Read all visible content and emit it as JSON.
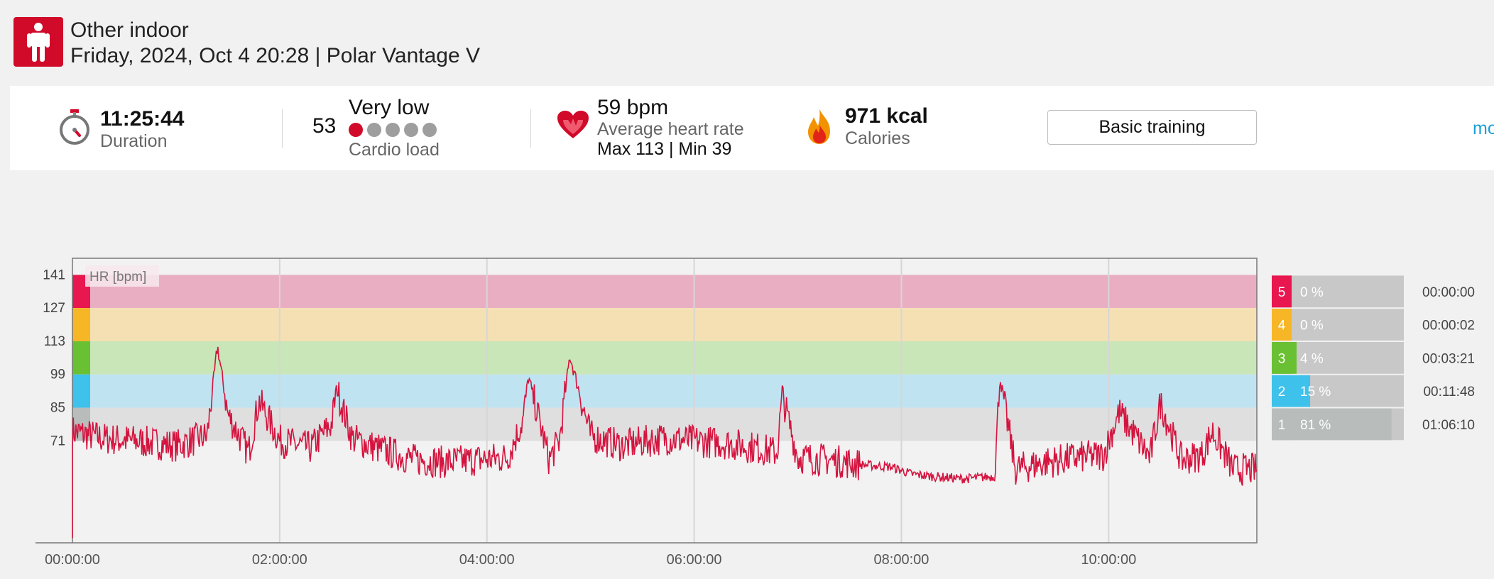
{
  "header": {
    "sport_icon": "person-standing-icon",
    "title": "Other indoor",
    "subtitle": "Friday, 2024, Oct 4 20:28 | Polar Vantage V"
  },
  "summary": {
    "duration": {
      "icon": "stopwatch-icon",
      "value": "11:25:44",
      "label": "Duration"
    },
    "cardio_load": {
      "value": "53",
      "level": "Very low",
      "label": "Cardio load",
      "dots_total": 5,
      "dots_filled": 1
    },
    "heart_rate": {
      "icon": "heart-icon",
      "value": "59 bpm",
      "label": "Average heart rate",
      "max_min": "Max 113  |  Min 39"
    },
    "calories": {
      "icon": "flame-icon",
      "value": "971 kcal",
      "label": "Calories"
    },
    "training_button": "Basic training",
    "more_link": "mo"
  },
  "colors": {
    "brand_red": "#d10a2a",
    "zone5": "#e8174f",
    "zone4": "#f6b625",
    "zone3": "#6ac033",
    "zone2": "#3ec1ea",
    "zone1": "#b8bcbb",
    "zone5_band": "#eaaec3",
    "zone4_band": "#f4e0b3",
    "zone3_band": "#c8e6b8",
    "zone2_band": "#bfe3f1",
    "zone1_band": "#dfdfdf",
    "hr_line": "#d4143f"
  },
  "chart_data": {
    "type": "line",
    "ylabel_badge": "HR [bpm]",
    "y_ticks": [
      141,
      127,
      113,
      99,
      85,
      71
    ],
    "ylim": [
      28,
      148
    ],
    "x_ticks": [
      "00:00:00",
      "02:00:00",
      "04:00:00",
      "06:00:00",
      "08:00:00",
      "10:00:00"
    ],
    "xlim_hours": [
      0,
      11.43
    ],
    "zones": [
      {
        "zone": "5",
        "from": 127,
        "to": 141,
        "percent": "0 %",
        "time": "00:00:00",
        "fraction": 0.0
      },
      {
        "zone": "4",
        "from": 113,
        "to": 127,
        "percent": "0 %",
        "time": "00:00:02",
        "fraction": 0.0
      },
      {
        "zone": "3",
        "from": 99,
        "to": 113,
        "percent": "4 %",
        "time": "00:03:21",
        "fraction": 0.04
      },
      {
        "zone": "2",
        "from": 85,
        "to": 99,
        "percent": "15 %",
        "time": "00:11:48",
        "fraction": 0.15
      },
      {
        "zone": "1",
        "from": 71,
        "to": 85,
        "percent": "81 %",
        "time": "01:06:10",
        "fraction": 0.81
      }
    ],
    "hr_series": {
      "name": "HR",
      "x_hours": [
        0.0,
        0.3,
        0.6,
        1.0,
        1.3,
        1.4,
        1.5,
        1.7,
        1.8,
        2.0,
        2.3,
        2.5,
        2.55,
        2.7,
        3.0,
        3.3,
        3.6,
        3.9,
        4.2,
        4.35,
        4.4,
        4.6,
        4.7,
        4.8,
        5.0,
        5.3,
        5.7,
        6.0,
        6.3,
        6.6,
        6.8,
        6.85,
        7.0,
        7.3,
        7.6,
        7.9,
        8.1,
        8.3,
        8.6,
        8.9,
        8.95,
        9.1,
        9.4,
        9.7,
        9.95,
        10.1,
        10.4,
        10.5,
        10.7,
        10.9,
        11.0,
        11.2,
        11.4
      ],
      "y_bpm": [
        75,
        72,
        71,
        69,
        73,
        111,
        82,
        66,
        88,
        71,
        68,
        78,
        93,
        72,
        67,
        63,
        62,
        63,
        64,
        80,
        98,
        63,
        71,
        107,
        73,
        69,
        72,
        71,
        70,
        68,
        66,
        90,
        64,
        63,
        61,
        60,
        57,
        56,
        55,
        56,
        98,
        59,
        62,
        64,
        65,
        83,
        64,
        87,
        63,
        65,
        75,
        59,
        59
      ]
    }
  }
}
